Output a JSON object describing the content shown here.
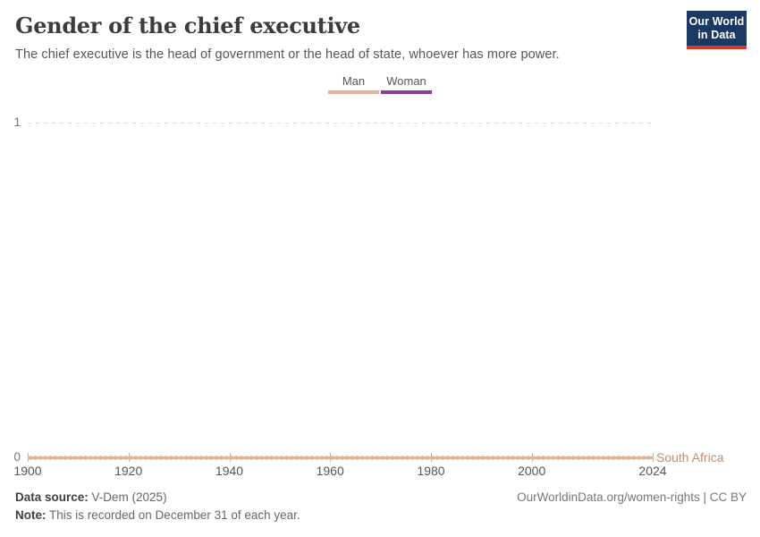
{
  "header": {
    "title": "Gender of the chief executive",
    "subtitle": "The chief executive is the head of government or the head of state, whoever has more power.",
    "logo": {
      "line1": "Our World",
      "line2": "in Data"
    }
  },
  "legend": {
    "items": [
      {
        "label": "Man",
        "color": "#e2b294"
      },
      {
        "label": "Woman",
        "color": "#883d93"
      }
    ]
  },
  "chart_data": {
    "type": "line",
    "title": "Gender of the chief executive",
    "entity": "South Africa",
    "series": [
      {
        "name": "South Africa",
        "category": "Man",
        "color": "#e2b294",
        "x_start": 1900,
        "x_end": 2024,
        "x_step": 1,
        "value_all_years": 0
      }
    ],
    "x_ticks": [
      1900,
      1920,
      1940,
      1960,
      1980,
      2000,
      2024
    ],
    "y_ticks": [
      0,
      1
    ],
    "xlim": [
      1900,
      2024
    ],
    "ylim": [
      0,
      1
    ],
    "gridline_at": 1,
    "marker": "circle-every-year",
    "legend_position": "top-center"
  },
  "footer": {
    "datasource_label": "Data source:",
    "datasource_value": " V-Dem (2025)",
    "note_label": "Note:",
    "note_value": " This is recorded on December 31 of each year.",
    "credit": "OurWorldinData.org/women-rights | CC BY"
  },
  "colors": {
    "man": "#e2b294",
    "woman": "#883d93",
    "entity_label": "#be8c6d",
    "logo_bg": "#1b3a63",
    "logo_stripe": "#d7382e"
  }
}
